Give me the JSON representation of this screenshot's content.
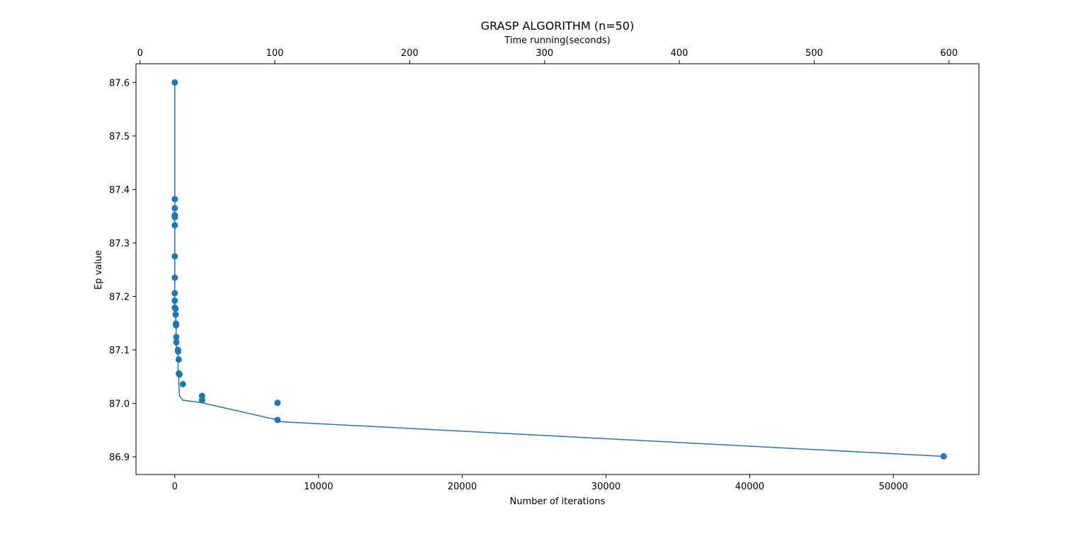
{
  "chart_data": {
    "type": "line",
    "title": "GRASP ALGORITHM (n=50)",
    "xlabel": "Number of iterations",
    "ylabel": "Ep value",
    "x2label": "Time running(seconds)",
    "xlim": [
      -2700,
      55950
    ],
    "ylim": [
      86.867,
      87.635
    ],
    "x2lim": [
      -3,
      622.2
    ],
    "xticks": [
      0,
      10000,
      20000,
      30000,
      40000,
      50000
    ],
    "xtick_labels": [
      "0",
      "10000",
      "20000",
      "30000",
      "40000",
      "50000"
    ],
    "yticks": [
      86.9,
      87.0,
      87.1,
      87.2,
      87.3,
      87.4,
      87.5,
      87.6
    ],
    "ytick_labels": [
      "86.9",
      "87.0",
      "87.1",
      "87.2",
      "87.3",
      "87.4",
      "87.5",
      "87.6"
    ],
    "x2ticks": [
      0,
      100,
      200,
      300,
      400,
      500,
      600
    ],
    "x2tick_labels": [
      "0",
      "100",
      "200",
      "300",
      "400",
      "500",
      "600"
    ],
    "grid": false,
    "series": [
      {
        "name": "Ep value",
        "color": "#1f77b4",
        "marker": "circle",
        "x": [
          0,
          0,
          0,
          0,
          0,
          0,
          0,
          0,
          0,
          0,
          0,
          0,
          0,
          50,
          50,
          60,
          60,
          80,
          80,
          90,
          90,
          100,
          100,
          110,
          110,
          220,
          230,
          230,
          270,
          280,
          330,
          560,
          1900,
          1900,
          7150,
          7150,
          53500
        ],
        "y": [
          87.6,
          87.382,
          87.382,
          87.365,
          87.352,
          87.348,
          87.333,
          87.275,
          87.235,
          87.206,
          87.192,
          87.179,
          87.177,
          87.177,
          87.166,
          87.166,
          87.149,
          87.149,
          87.146,
          87.146,
          87.124,
          87.124,
          87.114,
          87.114,
          87.1,
          87.097,
          87.082,
          87.056,
          87.054,
          87.036,
          87.014,
          87.006,
          87.001,
          87.001,
          86.969,
          86.966,
          86.901
        ],
        "marker_points": {
          "x": [
            0,
            0,
            0,
            0,
            0,
            0,
            0,
            0,
            0,
            0,
            0,
            50,
            60,
            80,
            90,
            100,
            110,
            220,
            230,
            270,
            280,
            330,
            560,
            1900,
            1900,
            7150,
            7150,
            53500
          ],
          "y": [
            87.6,
            87.382,
            87.365,
            87.352,
            87.348,
            87.333,
            87.275,
            87.235,
            87.206,
            87.192,
            87.179,
            87.177,
            87.166,
            87.149,
            87.146,
            87.124,
            87.114,
            87.1,
            87.097,
            87.082,
            87.056,
            87.054,
            87.036,
            87.014,
            87.006,
            87.001,
            86.969,
            86.901
          ]
        }
      }
    ]
  }
}
